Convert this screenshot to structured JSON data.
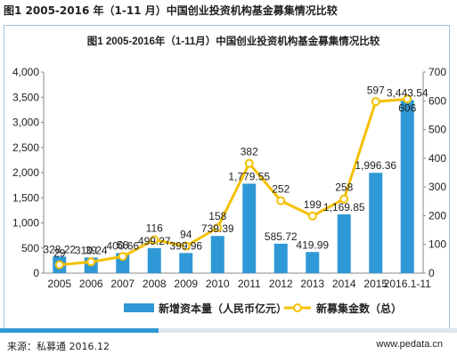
{
  "header": {
    "title": "图1 2005-2016 年（1-11 月）中国创业投资机构基金募集情况比较"
  },
  "footer": {
    "source": "来源：私募通 2016.12",
    "site": "www.pedata.cn"
  },
  "colors": {
    "bar": "#2f98d6",
    "line": "#f5c000",
    "marker_fill": "#ffffff",
    "frame": "#9ec3dc",
    "footer_accent": "#2f98d6"
  },
  "chart_data": {
    "type": "bar",
    "title": "图1 2005-2016年（1-11月）中国创业投资机构基金募集情况比较",
    "categories": [
      "2005",
      "2006",
      "2007",
      "2008",
      "2009",
      "2010",
      "2011",
      "2012",
      "2013",
      "2014",
      "2015",
      "2016.1-11"
    ],
    "series": [
      {
        "name": "新增资本量（人民币亿元）",
        "type": "bar",
        "axis": "left",
        "values": [
          328.22,
          310.24,
          400.66,
          499.27,
          399.96,
          739.39,
          1779.55,
          585.72,
          419.99,
          1169.85,
          1996.36,
          3443.54
        ],
        "labels": [
          "328.22",
          "310.24",
          "400.66",
          "499.27",
          "399.96",
          "739.39",
          "1,779.55",
          "585.72",
          "419.99",
          "1,169.85",
          "1,996.36",
          "3,443.54"
        ]
      },
      {
        "name": "新募集金数（总）",
        "type": "line",
        "axis": "right",
        "values": [
          29,
          39,
          58,
          116,
          94,
          158,
          382,
          252,
          199,
          258,
          597,
          606
        ],
        "labels": [
          "29",
          "39",
          "58",
          "116",
          "94",
          "158",
          "382",
          "252",
          "199",
          "258",
          "597",
          "606"
        ]
      }
    ],
    "y_left": {
      "min": 0,
      "max": 4000,
      "step": 500,
      "tick_labels": [
        "0",
        "500",
        "1,000",
        "1,500",
        "2,000",
        "2,500",
        "3,000",
        "3,500",
        "4,000"
      ]
    },
    "y_right": {
      "min": 0,
      "max": 700,
      "step": 100,
      "tick_labels": [
        "0",
        "100",
        "200",
        "300",
        "400",
        "500",
        "600",
        "700"
      ]
    },
    "grid": false,
    "legend": "bottom"
  }
}
